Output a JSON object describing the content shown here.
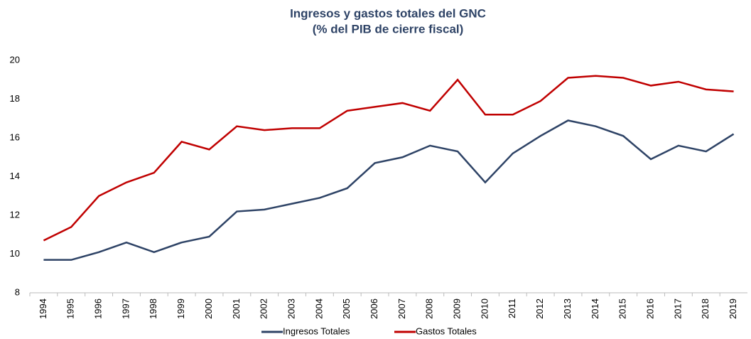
{
  "chart_data": {
    "type": "line",
    "title": "Ingresos y gastos totales del GNC",
    "subtitle": "(% del PIB de cierre fiscal)",
    "categories": [
      "1994",
      "1995",
      "1996",
      "1997",
      "1998",
      "1999",
      "2000",
      "2001",
      "2002",
      "2003",
      "2004",
      "2005",
      "2006",
      "2007",
      "2008",
      "2009",
      "2010",
      "2011",
      "2012",
      "2013",
      "2014",
      "2015",
      "2016",
      "2017",
      "2018",
      "2019"
    ],
    "series": [
      {
        "name": "Ingresos Totales",
        "color": "#2e4366",
        "values": [
          9.7,
          9.7,
          10.1,
          10.6,
          10.1,
          10.6,
          10.9,
          12.2,
          12.3,
          12.6,
          12.9,
          13.4,
          14.7,
          15.0,
          15.6,
          15.3,
          13.7,
          15.2,
          16.1,
          16.9,
          16.6,
          16.1,
          14.9,
          15.6,
          15.3,
          16.2
        ]
      },
      {
        "name": "Gastos Totales",
        "color": "#c00000",
        "values": [
          10.7,
          11.4,
          13.0,
          13.7,
          14.2,
          15.8,
          15.4,
          16.6,
          16.4,
          16.5,
          16.5,
          17.4,
          17.6,
          17.8,
          17.4,
          19.0,
          17.2,
          17.2,
          17.9,
          19.1,
          19.2,
          19.1,
          18.7,
          18.9,
          18.5,
          18.4
        ]
      }
    ],
    "ylim": [
      8,
      20
    ],
    "yticks": [
      8,
      10,
      12,
      14,
      16,
      18,
      20
    ],
    "grid": false,
    "legend": "bottom"
  }
}
